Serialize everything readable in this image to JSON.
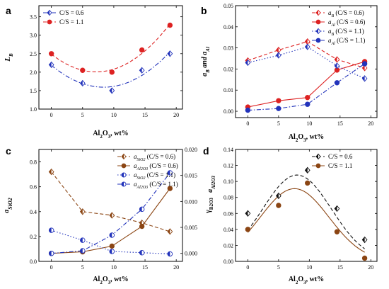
{
  "chart_data": [
    {
      "panel": "a",
      "type": "scatter",
      "xlabel": "Al2O3, wt%",
      "ylabel": "LB",
      "xlim": [
        -2,
        21
      ],
      "ylim": [
        1.0,
        3.8
      ],
      "xticks": [
        "0",
        "5",
        "10",
        "15",
        "20"
      ],
      "yticks": [
        "1.0",
        "1.5",
        "2.0",
        "2.5",
        "3.0",
        "3.5"
      ],
      "legend_position": "top-left",
      "series": [
        {
          "name": "C/S = 0.6",
          "x": [
            0,
            5,
            9.7,
            14.5,
            19
          ],
          "y": [
            2.2,
            1.7,
            1.5,
            2.05,
            2.5
          ],
          "color": "#2233bb",
          "marker": "half-diamond",
          "line": "dash-dot",
          "fit": "quadratic"
        },
        {
          "name": "C/S = 1.1",
          "x": [
            0,
            5,
            9.7,
            14.5,
            19
          ],
          "y": [
            2.5,
            2.05,
            2.0,
            2.6,
            3.27
          ],
          "color": "#dd2222",
          "marker": "circle",
          "line": "dashed",
          "fit": "quadratic"
        }
      ]
    },
    {
      "panel": "b",
      "type": "line",
      "xlabel": "Al2O3, wt%",
      "ylabel": "aB and aAl",
      "xlim": [
        -2,
        21
      ],
      "ylim": [
        -0.003,
        0.05
      ],
      "xticks": [
        "0",
        "5",
        "10",
        "15",
        "20"
      ],
      "yticks": [
        "0.00",
        "0.01",
        "0.02",
        "0.03",
        "0.04",
        "0.05"
      ],
      "legend_position": "top-right",
      "series": [
        {
          "name": "(C/S = 0.6)",
          "sym": "aB",
          "x": [
            0,
            5,
            9.7,
            14.5,
            19
          ],
          "y": [
            0.024,
            0.029,
            0.033,
            0.0245,
            0.0205
          ],
          "color": "#dd2222",
          "marker": "half-diamond",
          "line": "dashed"
        },
        {
          "name": "(C/S = 0.6)",
          "sym": "aAl",
          "x": [
            0,
            5,
            9.7,
            14.5,
            19
          ],
          "y": [
            0.002,
            0.005,
            0.0065,
            0.0195,
            0.0235
          ],
          "color": "#dd2222",
          "marker": "circle",
          "line": "solid"
        },
        {
          "name": "(C/S = 1.1)",
          "sym": "aB",
          "x": [
            0,
            5,
            9.7,
            14.5,
            19
          ],
          "y": [
            0.023,
            0.0265,
            0.0305,
            0.0215,
            0.0155
          ],
          "color": "#2233bb",
          "marker": "half-diamond",
          "line": "dotted"
        },
        {
          "name": "(C/S = 1.1)",
          "sym": "aAl",
          "x": [
            0,
            5,
            9.7,
            14.5,
            19
          ],
          "y": [
            0.0005,
            0.0013,
            0.0033,
            0.0135,
            0.0225
          ],
          "color": "#2233bb",
          "marker": "circle",
          "line": "dash-dot"
        }
      ]
    },
    {
      "panel": "c",
      "type": "line",
      "xlabel": "Al2O3, wt%",
      "ylabel": "aSiO2",
      "ylabel_right": "aAl2O3",
      "xlim": [
        -2,
        21
      ],
      "ylim": [
        0.0,
        0.9
      ],
      "ylim_right": [
        -0.00154,
        0.02
      ],
      "xticks": [
        "0",
        "5",
        "10",
        "15",
        "20"
      ],
      "yticks": [
        "0.0",
        "0.2",
        "0.4",
        "0.6",
        "0.8"
      ],
      "yticks_right": [
        "0.000",
        "0.005",
        "0.010",
        "0.015",
        "0.020"
      ],
      "legend_position": "top-right",
      "series": [
        {
          "name": "(C/S = 0.6)",
          "sym": "aSiO2",
          "axis": "left",
          "x": [
            0,
            5,
            9.7,
            14.5,
            19
          ],
          "y": [
            0.72,
            0.4,
            0.37,
            0.31,
            0.24
          ],
          "color": "#8b4513",
          "marker": "half-diamond",
          "line": "dashed"
        },
        {
          "name": "(C/S = 0.6)",
          "sym": "aAl2O3",
          "axis": "right",
          "x": [
            0,
            5,
            9.7,
            14.5,
            19
          ],
          "y": [
            0.0,
            0.0003,
            0.0014,
            0.0052,
            0.0125
          ],
          "color": "#8b4513",
          "marker": "circle",
          "line": "solid"
        },
        {
          "name": "(C/S = 1.1)",
          "sym": "aSiO2",
          "axis": "left",
          "x": [
            0,
            5,
            9.7,
            14.5,
            19
          ],
          "y": [
            0.25,
            0.17,
            0.08,
            0.07,
            0.06
          ],
          "color": "#2233bb",
          "marker": "half-circle",
          "line": "dotted"
        },
        {
          "name": "(C/S = 1.1)",
          "sym": "aAl2O3",
          "axis": "right",
          "x": [
            0,
            5,
            9.7,
            14.5,
            19
          ],
          "y": [
            0.0,
            0.0005,
            0.0035,
            0.0085,
            0.0155
          ],
          "color": "#2233bb",
          "marker": "half-circle",
          "line": "dash-dot"
        }
      ]
    },
    {
      "panel": "d",
      "type": "scatter",
      "xlabel": "Al2O3, wt%",
      "ylabel": "γB2O3",
      "xlim": [
        -2,
        21
      ],
      "ylim": [
        0.0,
        0.14
      ],
      "xticks": [
        "0",
        "5",
        "10",
        "15",
        "20"
      ],
      "yticks": [
        "0.00",
        "0.02",
        "0.04",
        "0.06",
        "0.08",
        "0.10",
        "0.12",
        "0.14"
      ],
      "legend_position": "top-right",
      "series": [
        {
          "name": "C/S = 0.6",
          "x": [
            0,
            5,
            9.7,
            14.5,
            19
          ],
          "y": [
            0.06,
            0.082,
            0.114,
            0.066,
            0.027
          ],
          "color": "#111111",
          "marker": "half-diamond",
          "line": "dashed",
          "fit": "gaussian",
          "fit_peak": 0.108,
          "fit_center": 8
        },
        {
          "name": "C/S = 1.1",
          "x": [
            0,
            5,
            9.7,
            14.5,
            19
          ],
          "y": [
            0.04,
            0.07,
            0.098,
            0.037,
            0.004
          ],
          "color": "#8b4513",
          "marker": "circle",
          "line": "solid",
          "fit": "gaussian",
          "fit_peak": 0.091,
          "fit_center": 7.6
        }
      ]
    }
  ]
}
